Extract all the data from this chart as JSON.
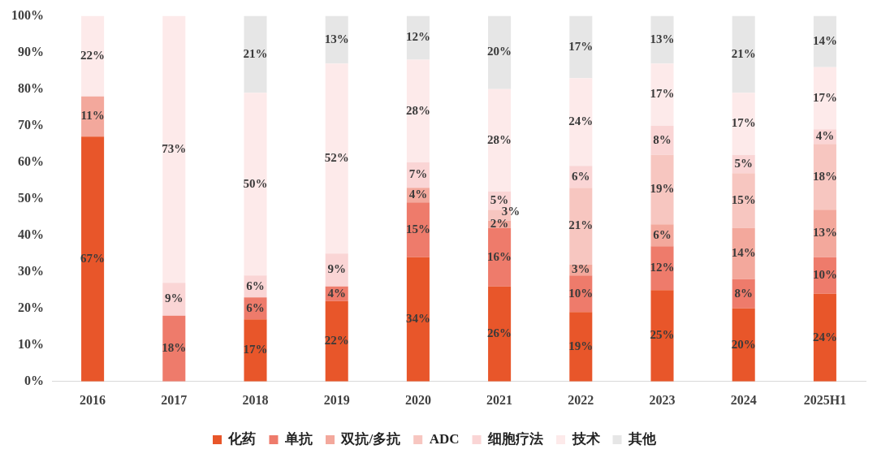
{
  "chart_data": {
    "type": "bar",
    "stacked": true,
    "categories": [
      "2016",
      "2017",
      "2018",
      "2019",
      "2020",
      "2021",
      "2022",
      "2023",
      "2024",
      "2025H1"
    ],
    "series": [
      {
        "name": "化药",
        "color": "#e8562a",
        "values": [
          67,
          null,
          17,
          22,
          34,
          26,
          19,
          25,
          20,
          24
        ],
        "value_labels": [
          "67%",
          null,
          "17%",
          "22%",
          "34%",
          "26%",
          "19%",
          "25%",
          "20%",
          "24%"
        ]
      },
      {
        "name": "单抗",
        "color": "#ee7b6b",
        "values": [
          null,
          18,
          6,
          4,
          15,
          16,
          10,
          12,
          8,
          10
        ],
        "value_labels": [
          null,
          "18%",
          "6%",
          "4%",
          "15%",
          "16%",
          "10%",
          "12%",
          "8%",
          "10%"
        ]
      },
      {
        "name": "双抗/多抗",
        "color": "#f3a89c",
        "values": [
          11,
          null,
          null,
          null,
          4,
          2,
          3,
          6,
          14,
          13
        ],
        "value_labels": [
          "11%",
          null,
          null,
          null,
          "4%",
          "2%",
          "3%",
          "6%",
          "14%",
          "13%"
        ]
      },
      {
        "name": "ADC",
        "color": "#f7c6c0",
        "values": [
          null,
          null,
          null,
          null,
          null,
          3,
          21,
          19,
          15,
          18
        ],
        "value_labels": [
          null,
          null,
          null,
          null,
          null,
          "3%",
          "21%",
          "19%",
          "15%",
          "18%"
        ]
      },
      {
        "name": "细胞疗法",
        "color": "#fad5d5",
        "values": [
          null,
          9,
          6,
          9,
          7,
          5,
          6,
          8,
          5,
          4
        ],
        "value_labels": [
          null,
          "9%",
          "6%",
          "9%",
          "7%",
          "5%",
          "6%",
          "8%",
          "5%",
          "4%"
        ]
      },
      {
        "name": "技术",
        "color": "#fdeaea",
        "values": [
          22,
          73,
          50,
          52,
          28,
          28,
          24,
          17,
          17,
          17
        ],
        "value_labels": [
          "22%",
          "73%",
          "50%",
          "52%",
          "28%",
          "28%",
          "24%",
          "17%",
          "17%",
          "17%"
        ]
      },
      {
        "name": "其他",
        "color": "#e6e6e6",
        "values": [
          null,
          null,
          21,
          13,
          12,
          20,
          17,
          13,
          21,
          14
        ],
        "value_labels": [
          null,
          null,
          "21%",
          "13%",
          "12%",
          "20%",
          "17%",
          "13%",
          "21%",
          "14%"
        ]
      }
    ],
    "ylim": [
      0,
      100
    ],
    "yticks": [
      {
        "value": 0,
        "label": "0%"
      },
      {
        "value": 10,
        "label": "10%"
      },
      {
        "value": 20,
        "label": "20%"
      },
      {
        "value": 30,
        "label": "30%"
      },
      {
        "value": 40,
        "label": "40%"
      },
      {
        "value": 50,
        "label": "50%"
      },
      {
        "value": 60,
        "label": "60%"
      },
      {
        "value": 70,
        "label": "70%"
      },
      {
        "value": 80,
        "label": "80%"
      },
      {
        "value": 90,
        "label": "90%"
      },
      {
        "value": 100,
        "label": "100%"
      }
    ],
    "grid": false,
    "legend": "bottom"
  }
}
